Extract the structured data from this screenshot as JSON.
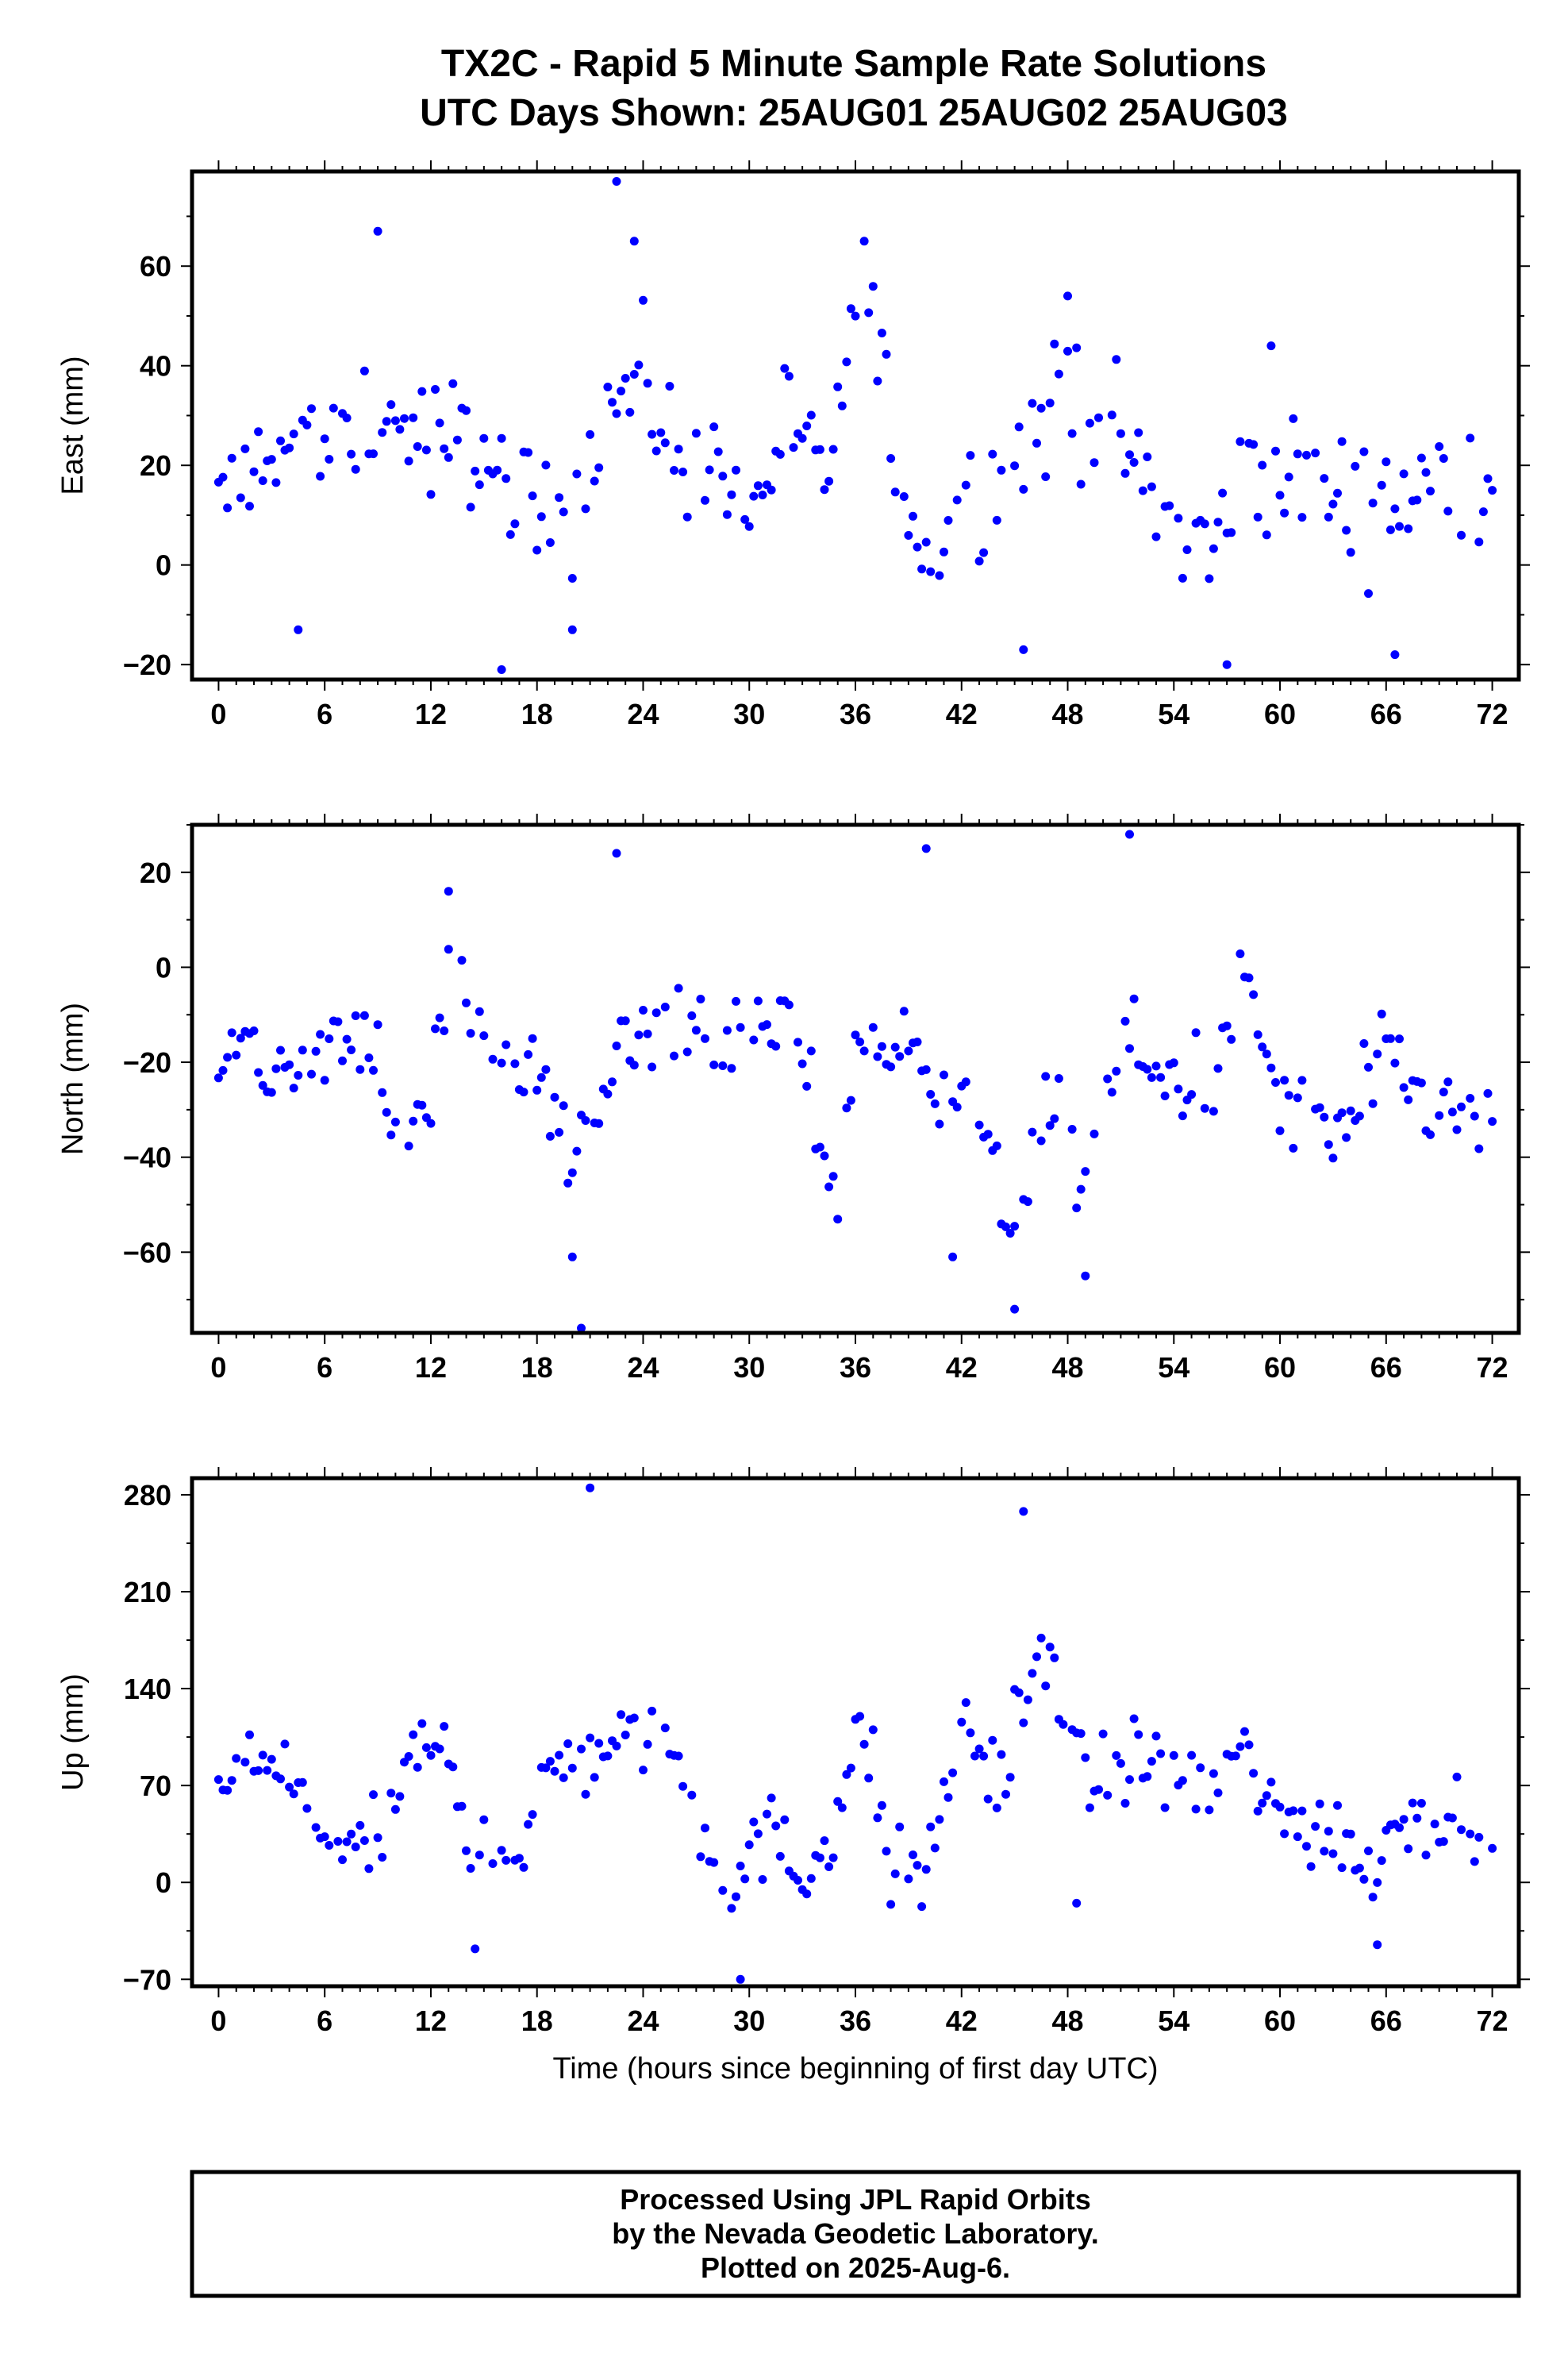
{
  "title": {
    "line1": "TX2C - Rapid 5 Minute Sample Rate Solutions",
    "line2": "UTC Days Shown:  25AUG01 25AUG02 25AUG03"
  },
  "footer": {
    "line1": "Processed Using JPL Rapid Orbits",
    "line2": "by the Nevada Geodetic Laboratory.",
    "line3": "Plotted on 2025-Aug-6."
  },
  "colors": {
    "points": "#0000ff",
    "frame": "#000000"
  },
  "chart_data": [
    {
      "type": "scatter",
      "name": "east",
      "ylabel": "East (mm)",
      "xlabel": "",
      "xlim": [
        -1.5,
        73.5
      ],
      "ylim": [
        -23,
        79
      ],
      "xticks": [
        0,
        6,
        12,
        18,
        24,
        30,
        36,
        42,
        48,
        54,
        60,
        66,
        72
      ],
      "yticks": [
        -20,
        0,
        20,
        40,
        60
      ],
      "trend": [
        [
          0,
          10
        ],
        [
          3,
          25
        ],
        [
          6,
          22
        ],
        [
          9,
          30
        ],
        [
          12,
          25
        ],
        [
          15,
          24
        ],
        [
          17,
          10
        ],
        [
          20,
          12
        ],
        [
          22,
          32
        ],
        [
          24,
          38
        ],
        [
          26,
          20
        ],
        [
          28,
          25
        ],
        [
          30,
          8
        ],
        [
          32,
          30
        ],
        [
          34,
          15
        ],
        [
          36,
          45
        ],
        [
          37,
          50
        ],
        [
          38,
          25
        ],
        [
          40,
          2
        ],
        [
          42,
          12
        ],
        [
          45,
          20
        ],
        [
          48,
          35
        ],
        [
          51,
          25
        ],
        [
          54,
          5
        ],
        [
          56,
          2
        ],
        [
          58,
          18
        ],
        [
          62,
          15
        ],
        [
          66,
          12
        ],
        [
          70,
          18
        ],
        [
          72,
          17
        ]
      ],
      "outliers": [
        [
          22.5,
          77
        ],
        [
          9,
          67
        ],
        [
          23.5,
          65
        ],
        [
          36.5,
          65
        ],
        [
          16,
          -21
        ],
        [
          57,
          -20
        ],
        [
          4.5,
          -13
        ],
        [
          20,
          -13
        ],
        [
          45.5,
          -17
        ],
        [
          66.5,
          -18
        ],
        [
          59.5,
          44
        ],
        [
          48,
          54
        ]
      ],
      "spread": 9
    },
    {
      "type": "scatter",
      "name": "north",
      "ylabel": "North (mm)",
      "xlabel": "",
      "xlim": [
        -1.5,
        73.5
      ],
      "ylim": [
        -77,
        30
      ],
      "xticks": [
        0,
        6,
        12,
        18,
        24,
        30,
        36,
        42,
        48,
        54,
        60,
        66,
        72
      ],
      "yticks": [
        -60,
        -40,
        -20,
        0,
        20
      ],
      "trend": [
        [
          0,
          -15
        ],
        [
          3,
          -22
        ],
        [
          6,
          -20
        ],
        [
          8,
          -12
        ],
        [
          10,
          -38
        ],
        [
          12,
          -28
        ],
        [
          13,
          5
        ],
        [
          15,
          -15
        ],
        [
          18,
          -25
        ],
        [
          20,
          -38
        ],
        [
          22,
          -22
        ],
        [
          24,
          -15
        ],
        [
          27,
          -10
        ],
        [
          30,
          -20
        ],
        [
          32,
          -10
        ],
        [
          34,
          -35
        ],
        [
          35,
          -48
        ],
        [
          36,
          -15
        ],
        [
          40,
          -20
        ],
        [
          42,
          -25
        ],
        [
          44,
          -45
        ],
        [
          45,
          -55
        ],
        [
          47,
          -30
        ],
        [
          49,
          -45
        ],
        [
          51,
          -15
        ],
        [
          54,
          -25
        ],
        [
          56,
          -22
        ],
        [
          58,
          -5
        ],
        [
          60,
          -28
        ],
        [
          63,
          -35
        ],
        [
          66,
          -20
        ],
        [
          69,
          -30
        ],
        [
          72,
          -35
        ]
      ],
      "outliers": [
        [
          22.5,
          24
        ],
        [
          40,
          25
        ],
        [
          51.5,
          28
        ],
        [
          20.5,
          -76
        ],
        [
          45,
          -72
        ],
        [
          20,
          -61
        ],
        [
          49,
          -65
        ],
        [
          41.5,
          -61
        ],
        [
          13,
          16
        ]
      ],
      "spread": 7
    },
    {
      "type": "scatter",
      "name": "up",
      "ylabel": "Up (mm)",
      "xlabel": "Time (hours since beginning of first day UTC)",
      "xlim": [
        -1.5,
        73.5
      ],
      "ylim": [
        -75,
        292
      ],
      "xticks": [
        0,
        6,
        12,
        18,
        24,
        30,
        36,
        42,
        48,
        54,
        60,
        66,
        72
      ],
      "yticks": [
        -70,
        0,
        70,
        140,
        210,
        280
      ],
      "trend": [
        [
          0,
          55
        ],
        [
          2,
          95
        ],
        [
          4,
          70
        ],
        [
          6,
          35
        ],
        [
          9,
          25
        ],
        [
          11,
          90
        ],
        [
          13,
          95
        ],
        [
          14,
          30
        ],
        [
          17,
          30
        ],
        [
          19,
          80
        ],
        [
          22,
          100
        ],
        [
          25,
          110
        ],
        [
          27,
          50
        ],
        [
          29,
          0
        ],
        [
          31,
          35
        ],
        [
          33,
          5
        ],
        [
          35,
          50
        ],
        [
          36,
          100
        ],
        [
          37,
          90
        ],
        [
          38,
          5
        ],
        [
          40,
          10
        ],
        [
          41,
          60
        ],
        [
          42,
          120
        ],
        [
          44,
          70
        ],
        [
          46,
          150
        ],
        [
          47,
          170
        ],
        [
          49,
          70
        ],
        [
          52,
          90
        ],
        [
          55,
          65
        ],
        [
          58,
          90
        ],
        [
          60,
          45
        ],
        [
          63,
          40
        ],
        [
          65,
          10
        ],
        [
          67,
          50
        ],
        [
          70,
          50
        ],
        [
          72,
          40
        ]
      ],
      "outliers": [
        [
          21,
          285
        ],
        [
          45.5,
          268
        ],
        [
          29.5,
          -70
        ],
        [
          14.5,
          -48
        ],
        [
          65.5,
          -45
        ],
        [
          48.5,
          -15
        ]
      ],
      "spread": 22
    }
  ]
}
